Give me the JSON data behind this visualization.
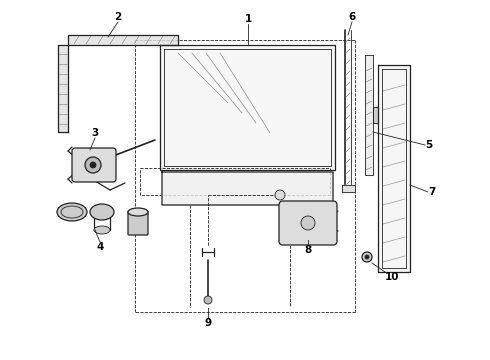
{
  "bg_color": "#ffffff",
  "line_color": "#222222",
  "label_color": "#000000",
  "lw_thin": 0.6,
  "lw_med": 0.9,
  "lw_thick": 1.2,
  "label_fs": 7.5
}
